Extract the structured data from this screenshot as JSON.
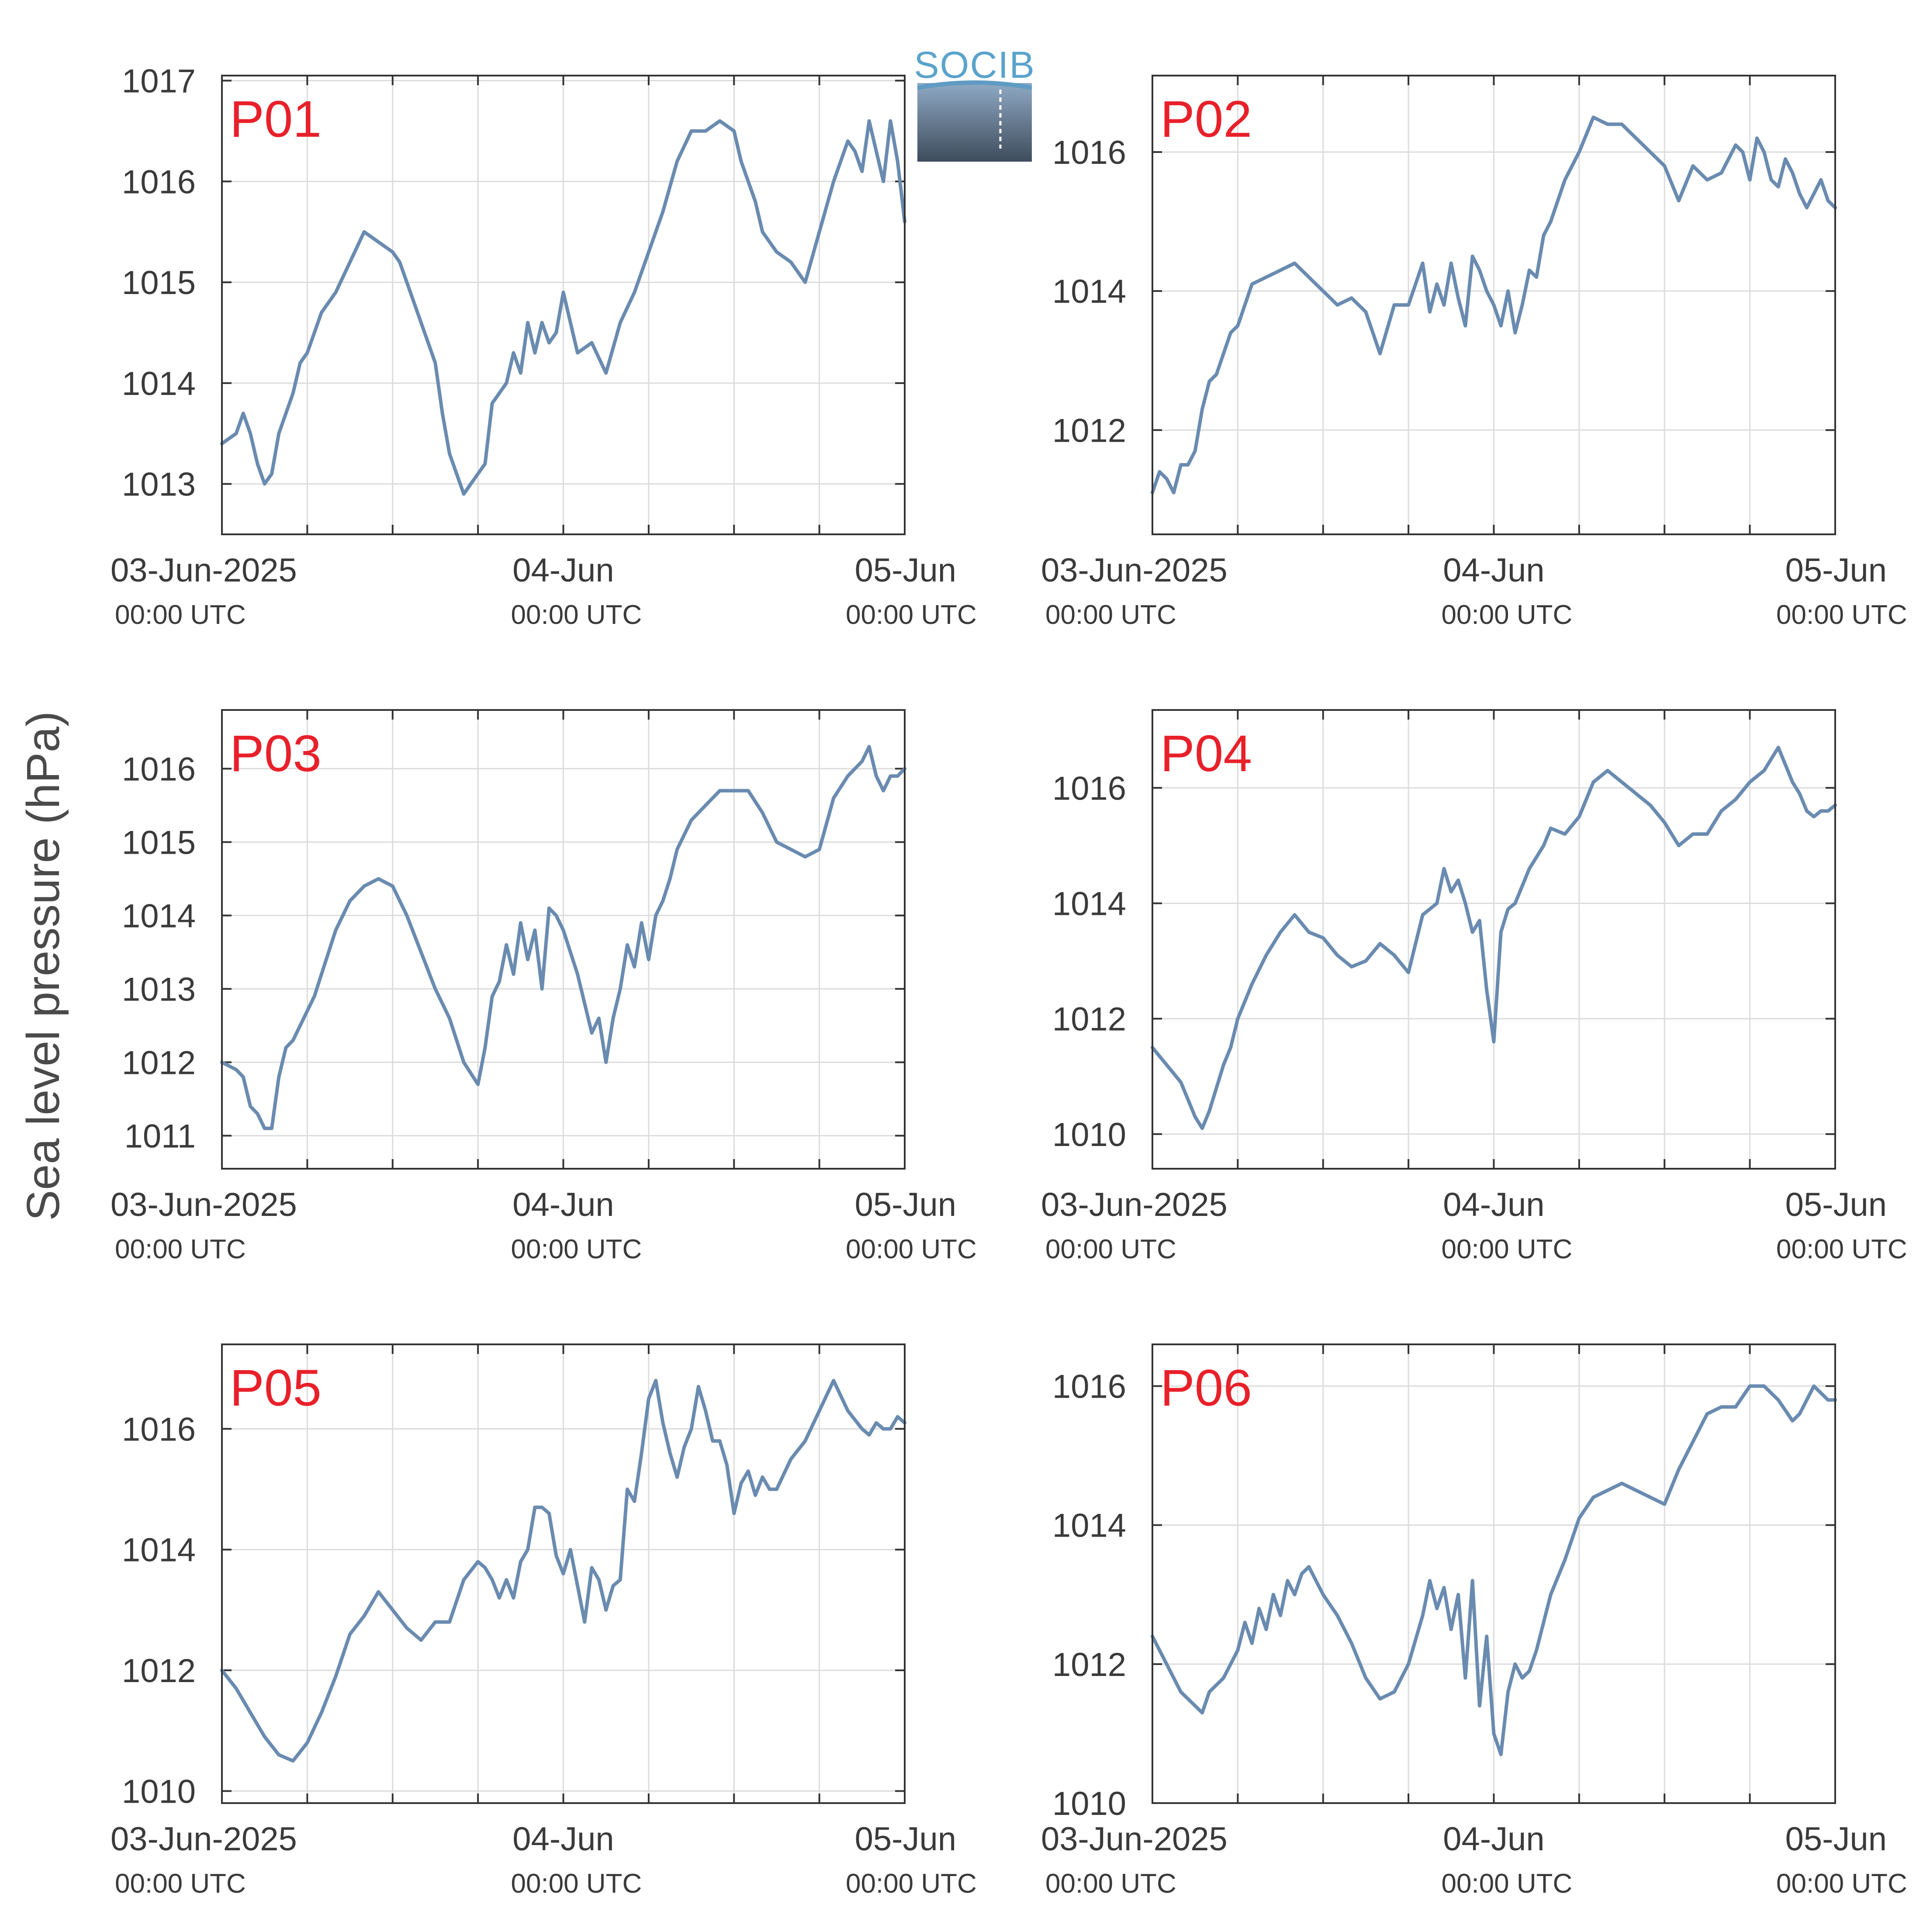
{
  "figure": {
    "ylabel": "Sea level pressure (hPa)",
    "logo_text": "SOCIB",
    "line_color": "#6a8bb0",
    "panel_label_color": "#e8202a",
    "axis_color": "#333333",
    "grid_color": "#dcdcdc",
    "x_tick_labels": [
      {
        "date": "03-Jun-2025",
        "time": "00:00 UTC"
      },
      {
        "date": "04-Jun",
        "time": "00:00 UTC"
      },
      {
        "date": "05-Jun",
        "time": "00:00 UTC"
      }
    ]
  },
  "chart_data": [
    {
      "type": "line",
      "title": "P01",
      "xlim": [
        0,
        48
      ],
      "ylim": [
        1012.5,
        1017.05
      ],
      "yticks": [
        1013,
        1014,
        1015,
        1016,
        1017
      ],
      "x": [
        0,
        1,
        1.5,
        2,
        2.5,
        3,
        3.5,
        4,
        4.5,
        5,
        5.5,
        6,
        7,
        8,
        9,
        10,
        11,
        12,
        12.5,
        13,
        14,
        15,
        15.5,
        16,
        16.5,
        17,
        17.5,
        18,
        18.5,
        19,
        19.5,
        20,
        20.5,
        21,
        21.5,
        22,
        22.5,
        23,
        23.5,
        24,
        25,
        26,
        27,
        28,
        29,
        30,
        31,
        32,
        33,
        34,
        35,
        36,
        36.5,
        37,
        37.5,
        38,
        38.5,
        39,
        40,
        41,
        42,
        43,
        44,
        44.5,
        45,
        45.5,
        46,
        46.5,
        47,
        47.5,
        48
      ],
      "y": [
        1013.4,
        1013.5,
        1013.7,
        1013.5,
        1013.2,
        1013.0,
        1013.1,
        1013.5,
        1013.7,
        1013.9,
        1014.2,
        1014.3,
        1014.7,
        1014.9,
        1015.2,
        1015.5,
        1015.4,
        1015.3,
        1015.2,
        1015.0,
        1014.6,
        1014.2,
        1013.7,
        1013.3,
        1013.1,
        1012.9,
        1013.0,
        1013.1,
        1013.2,
        1013.8,
        1013.9,
        1014.0,
        1014.3,
        1014.1,
        1014.6,
        1014.3,
        1014.6,
        1014.4,
        1014.5,
        1014.9,
        1014.3,
        1014.4,
        1014.1,
        1014.6,
        1014.9,
        1015.3,
        1015.7,
        1016.2,
        1016.5,
        1016.5,
        1016.6,
        1016.5,
        1016.2,
        1016.0,
        1015.8,
        1015.5,
        1015.4,
        1015.3,
        1015.2,
        1015.0,
        1015.5,
        1016.0,
        1016.4,
        1016.3,
        1016.1,
        1016.6,
        1016.3,
        1016.0,
        1016.6,
        1016.2,
        1015.6
      ]
    },
    {
      "type": "line",
      "title": "P02",
      "xlim": [
        0,
        48
      ],
      "ylim": [
        1010.5,
        1017.1
      ],
      "yticks": [
        1012,
        1014,
        1016
      ],
      "x": [
        0,
        0.5,
        1,
        1.5,
        2,
        2.5,
        3,
        3.5,
        4,
        4.5,
        5,
        5.5,
        6,
        6.5,
        7,
        8,
        9,
        10,
        11,
        12,
        13,
        14,
        15,
        16,
        17,
        18,
        19,
        19.5,
        20,
        20.5,
        21,
        21.5,
        22,
        22.5,
        23,
        23.5,
        24,
        24.5,
        25,
        25.5,
        26,
        26.5,
        27,
        27.5,
        28,
        29,
        30,
        31,
        32,
        33,
        34,
        35,
        36,
        37,
        38,
        39,
        40,
        40.5,
        41,
        41.5,
        42,
        42.5,
        43,
        43.5,
        44,
        44.5,
        45,
        45.5,
        46,
        46.5,
        47,
        47.5,
        48
      ],
      "y": [
        1011.1,
        1011.4,
        1011.3,
        1011.1,
        1011.5,
        1011.5,
        1011.7,
        1012.3,
        1012.7,
        1012.8,
        1013.1,
        1013.4,
        1013.5,
        1013.8,
        1014.1,
        1014.2,
        1014.3,
        1014.4,
        1014.2,
        1014.0,
        1013.8,
        1013.9,
        1013.7,
        1013.1,
        1013.8,
        1013.8,
        1014.4,
        1013.7,
        1014.1,
        1013.8,
        1014.4,
        1013.9,
        1013.5,
        1014.5,
        1014.3,
        1014.0,
        1013.8,
        1013.5,
        1014.0,
        1013.4,
        1013.8,
        1014.3,
        1014.2,
        1014.8,
        1015.0,
        1015.6,
        1016.0,
        1016.5,
        1016.4,
        1016.4,
        1016.2,
        1016.0,
        1015.8,
        1015.3,
        1015.8,
        1015.6,
        1015.7,
        1015.9,
        1016.1,
        1016.0,
        1015.6,
        1016.2,
        1016.0,
        1015.6,
        1015.5,
        1015.9,
        1015.7,
        1015.4,
        1015.2,
        1015.4,
        1015.6,
        1015.3,
        1015.2
      ]
    },
    {
      "type": "line",
      "title": "P03",
      "xlim": [
        0,
        48
      ],
      "ylim": [
        1010.55,
        1016.8
      ],
      "yticks": [
        1011,
        1012,
        1013,
        1014,
        1015,
        1016
      ],
      "x": [
        0,
        1,
        1.5,
        2,
        2.5,
        3,
        3.5,
        4,
        4.5,
        5,
        5.5,
        6,
        6.5,
        7,
        8,
        9,
        10,
        11,
        12,
        13,
        14,
        15,
        16,
        17,
        18,
        18.5,
        19,
        19.5,
        20,
        20.5,
        21,
        21.5,
        22,
        22.5,
        23,
        23.5,
        24,
        25,
        26,
        26.5,
        27,
        27.5,
        28,
        28.5,
        29,
        29.5,
        30,
        30.5,
        31,
        31.5,
        32,
        33,
        34,
        35,
        36,
        37,
        38,
        39,
        40,
        41,
        42,
        43,
        44,
        45,
        45.5,
        46,
        46.5,
        47,
        47.5,
        48
      ],
      "y": [
        1012.0,
        1011.9,
        1011.8,
        1011.4,
        1011.3,
        1011.1,
        1011.1,
        1011.8,
        1012.2,
        1012.3,
        1012.5,
        1012.7,
        1012.9,
        1013.2,
        1013.8,
        1014.2,
        1014.4,
        1014.5,
        1014.4,
        1014.0,
        1013.5,
        1013.0,
        1012.6,
        1012.0,
        1011.7,
        1012.2,
        1012.9,
        1013.1,
        1013.6,
        1013.2,
        1013.9,
        1013.4,
        1013.8,
        1013.0,
        1014.1,
        1014.0,
        1013.8,
        1013.2,
        1012.4,
        1012.6,
        1012.0,
        1012.6,
        1013.0,
        1013.6,
        1013.3,
        1013.9,
        1013.4,
        1014.0,
        1014.2,
        1014.5,
        1014.9,
        1015.3,
        1015.5,
        1015.7,
        1015.7,
        1015.7,
        1015.4,
        1015.0,
        1014.9,
        1014.8,
        1014.9,
        1015.6,
        1015.9,
        1016.1,
        1016.3,
        1015.9,
        1015.7,
        1015.9,
        1015.9,
        1016.0
      ]
    },
    {
      "type": "line",
      "title": "P04",
      "xlim": [
        0,
        48
      ],
      "ylim": [
        1009.4,
        1017.35
      ],
      "yticks": [
        1010,
        1012,
        1014,
        1016
      ],
      "x": [
        0,
        1,
        2,
        3,
        3.5,
        4,
        5,
        5.5,
        6,
        7,
        8,
        9,
        10,
        11,
        12,
        13,
        14,
        15,
        16,
        17,
        18,
        19,
        20,
        20.5,
        21,
        21.5,
        22,
        22.5,
        23,
        23.5,
        24,
        24.5,
        25,
        25.5,
        26,
        26.5,
        27,
        27.5,
        28,
        29,
        30,
        31,
        32,
        33,
        34,
        35,
        36,
        37,
        38,
        39,
        40,
        41,
        42,
        43,
        44,
        45,
        45.5,
        46,
        46.5,
        47,
        47.5,
        48
      ],
      "y": [
        1011.5,
        1011.2,
        1010.9,
        1010.3,
        1010.1,
        1010.4,
        1011.2,
        1011.5,
        1012.0,
        1012.6,
        1013.1,
        1013.5,
        1013.8,
        1013.5,
        1013.4,
        1013.1,
        1012.9,
        1013.0,
        1013.3,
        1013.1,
        1012.8,
        1013.8,
        1014.0,
        1014.6,
        1014.2,
        1014.4,
        1014.0,
        1013.5,
        1013.7,
        1012.5,
        1011.6,
        1013.5,
        1013.9,
        1014.0,
        1014.3,
        1014.6,
        1014.8,
        1015.0,
        1015.3,
        1015.2,
        1015.5,
        1016.1,
        1016.3,
        1016.1,
        1015.9,
        1015.7,
        1015.4,
        1015.0,
        1015.2,
        1015.2,
        1015.6,
        1015.8,
        1016.1,
        1016.3,
        1016.7,
        1016.1,
        1015.9,
        1015.6,
        1015.5,
        1015.6,
        1015.6,
        1015.7
      ]
    },
    {
      "type": "line",
      "title": "P05",
      "xlim": [
        0,
        48
      ],
      "ylim": [
        1009.8,
        1017.4
      ],
      "yticks": [
        1010,
        1012,
        1014,
        1016
      ],
      "x": [
        0,
        1,
        2,
        3,
        4,
        5,
        6,
        7,
        8,
        9,
        10,
        11,
        12,
        13,
        14,
        15,
        16,
        17,
        18,
        18.5,
        19,
        19.5,
        20,
        20.5,
        21,
        21.5,
        22,
        22.5,
        23,
        23.5,
        24,
        24.5,
        25,
        25.5,
        26,
        26.5,
        27,
        27.5,
        28,
        28.5,
        29,
        29.5,
        30,
        30.5,
        31,
        31.5,
        32,
        32.5,
        33,
        33.5,
        34,
        34.5,
        35,
        35.5,
        36,
        36.5,
        37,
        37.5,
        38,
        38.5,
        39,
        40,
        41,
        42,
        43,
        44,
        45,
        45.5,
        46,
        46.5,
        47,
        47.5,
        48
      ],
      "y": [
        1012.0,
        1011.7,
        1011.3,
        1010.9,
        1010.6,
        1010.5,
        1010.8,
        1011.3,
        1011.9,
        1012.6,
        1012.9,
        1013.3,
        1013.0,
        1012.7,
        1012.5,
        1012.8,
        1012.8,
        1013.5,
        1013.8,
        1013.7,
        1013.5,
        1013.2,
        1013.5,
        1013.2,
        1013.8,
        1014.0,
        1014.7,
        1014.7,
        1014.6,
        1013.9,
        1013.6,
        1014.0,
        1013.4,
        1012.8,
        1013.7,
        1013.5,
        1013.0,
        1013.4,
        1013.5,
        1015.0,
        1014.8,
        1015.6,
        1016.5,
        1016.8,
        1016.1,
        1015.6,
        1015.2,
        1015.7,
        1016.0,
        1016.7,
        1016.3,
        1015.8,
        1015.8,
        1015.4,
        1014.6,
        1015.1,
        1015.3,
        1014.9,
        1015.2,
        1015.0,
        1015.0,
        1015.5,
        1015.8,
        1016.3,
        1016.8,
        1016.3,
        1016.0,
        1015.9,
        1016.1,
        1016.0,
        1016.0,
        1016.2,
        1016.1
      ]
    },
    {
      "type": "line",
      "title": "P06",
      "xlim": [
        0,
        48
      ],
      "ylim": [
        1010.0,
        1016.6
      ],
      "yticks": [
        1010,
        1012,
        1014,
        1016
      ],
      "x": [
        0,
        1,
        2,
        3,
        3.5,
        4,
        5,
        6,
        6.5,
        7,
        7.5,
        8,
        8.5,
        9,
        9.5,
        10,
        10.5,
        11,
        11.5,
        12,
        13,
        14,
        15,
        16,
        17,
        18,
        19,
        19.5,
        20,
        20.5,
        21,
        21.5,
        22,
        22.5,
        23,
        23.5,
        24,
        24.5,
        25,
        25.5,
        26,
        26.5,
        27,
        28,
        29,
        30,
        31,
        32,
        33,
        34,
        35,
        36,
        37,
        38,
        39,
        40,
        41,
        42,
        43,
        44,
        45,
        45.5,
        46,
        46.5,
        47,
        47.5,
        48
      ],
      "y": [
        1012.4,
        1012.0,
        1011.6,
        1011.4,
        1011.3,
        1011.6,
        1011.8,
        1012.2,
        1012.6,
        1012.3,
        1012.8,
        1012.5,
        1013.0,
        1012.7,
        1013.2,
        1013.0,
        1013.3,
        1013.4,
        1013.2,
        1013.0,
        1012.7,
        1012.3,
        1011.8,
        1011.5,
        1011.6,
        1012.0,
        1012.7,
        1013.2,
        1012.8,
        1013.1,
        1012.5,
        1013.0,
        1011.8,
        1013.2,
        1011.4,
        1012.4,
        1011.0,
        1010.7,
        1011.6,
        1012.0,
        1011.8,
        1011.9,
        1012.2,
        1013.0,
        1013.5,
        1014.1,
        1014.4,
        1014.5,
        1014.6,
        1014.5,
        1014.4,
        1014.3,
        1014.8,
        1015.2,
        1015.6,
        1015.7,
        1015.7,
        1016.0,
        1016.0,
        1015.8,
        1015.5,
        1015.6,
        1015.8,
        1016.0,
        1015.9,
        1015.8,
        1015.8
      ]
    }
  ]
}
